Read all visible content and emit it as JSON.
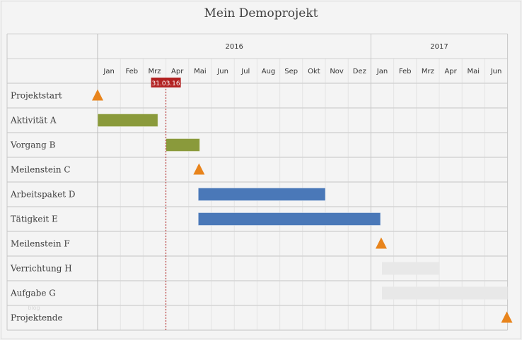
{
  "chart_data": {
    "type": "gantt",
    "title": "Mein Demoprojekt",
    "time_range": [
      "2016-01-01",
      "2017-06-30"
    ],
    "years": [
      {
        "label": "2016",
        "start": "2016-01-01",
        "end": "2016-12-31"
      },
      {
        "label": "2017",
        "start": "2017-01-01",
        "end": "2017-06-30"
      }
    ],
    "months": [
      "Jan",
      "Feb",
      "Mrz",
      "Apr",
      "Mai",
      "Jun",
      "Jul",
      "Aug",
      "Sep",
      "Okt",
      "Nov",
      "Dez",
      "Jan",
      "Feb",
      "Mrz",
      "Apr",
      "Mai",
      "Jun"
    ],
    "today": {
      "date": "2016-03-31",
      "label": "31.03.16"
    },
    "tasks": [
      {
        "name": "Projektstart",
        "type": "milestone",
        "date": "2016-01-01"
      },
      {
        "name": "Aktivität A",
        "type": "task",
        "start": "2016-01-01",
        "end": "2016-03-20",
        "color": "#8a9a3b"
      },
      {
        "name": "Vorgang B",
        "type": "task",
        "start": "2016-04-01",
        "end": "2016-05-15",
        "color": "#8a9a3b"
      },
      {
        "name": "Meilenstein C",
        "type": "milestone",
        "date": "2016-05-15"
      },
      {
        "name": "Arbeitspaket D",
        "type": "task",
        "start": "2016-05-14",
        "end": "2016-10-31",
        "color": "#4a78b8"
      },
      {
        "name": "Tätigkeit E",
        "type": "task",
        "start": "2016-05-14",
        "end": "2017-01-13",
        "color": "#4a78b8"
      },
      {
        "name": "Meilenstein F",
        "type": "milestone",
        "date": "2017-01-15"
      },
      {
        "name": "Verrichtung H",
        "type": "task",
        "start": "2017-01-16",
        "end": "2017-03-31",
        "color": "#e8e8e8"
      },
      {
        "name": "Aufgabe G",
        "type": "task",
        "start": "2017-01-16",
        "end": "2017-06-30",
        "color": "#e8e8e8"
      },
      {
        "name": "Projektende",
        "type": "milestone",
        "date": "2017-06-30"
      }
    ],
    "milestone_color": "#e8841c",
    "today_color": "#b22222",
    "grid": true
  },
  "watermark": "blog"
}
